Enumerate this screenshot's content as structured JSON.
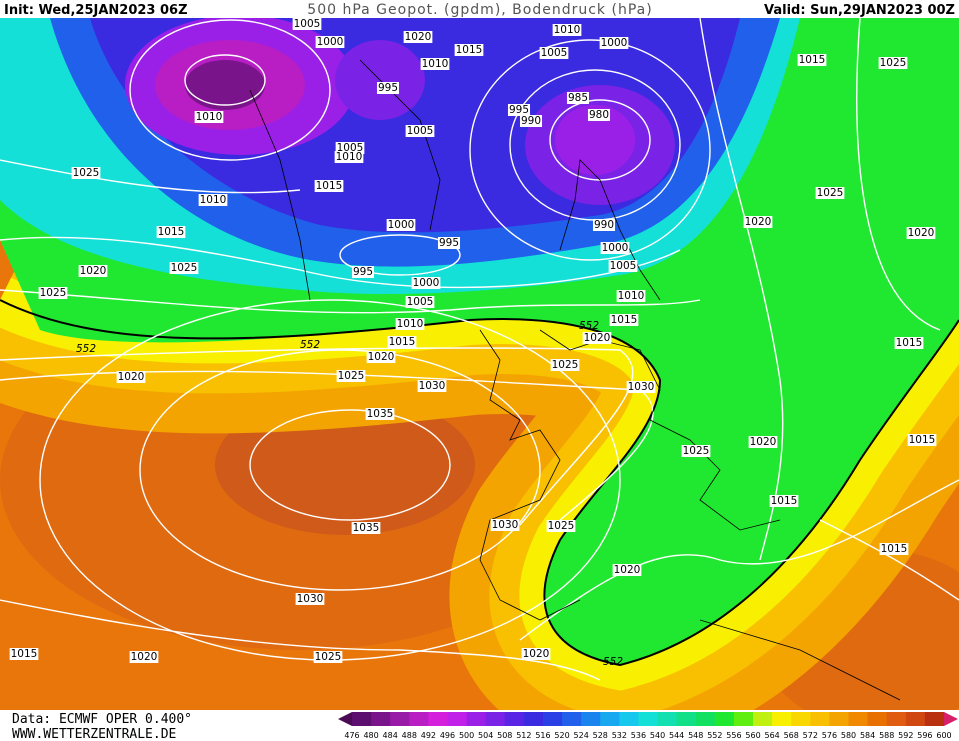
{
  "header": {
    "init": "Init: Wed,25JAN2023 06Z",
    "title": "500 hPa Geopot. (gpdm), Bodendruck (hPa)",
    "valid": "Valid: Sun,29JAN2023 00Z"
  },
  "labels": [
    "1005",
    "1000",
    "1020",
    "1015",
    "1010",
    "1005",
    "1000",
    "1015",
    "1025",
    "1010",
    "995",
    "985",
    "995",
    "990",
    "980",
    "1010",
    "1005",
    "1005",
    "1010",
    "1025",
    "1015",
    "1010",
    "1025",
    "1020",
    "1020",
    "1000",
    "990",
    "1015",
    "995",
    "1000",
    "1020",
    "1025",
    "995",
    "1005",
    "1000",
    "1025",
    "1010",
    "1005",
    "1015",
    "1010",
    "552",
    "1020",
    "1015",
    "552",
    "552",
    "1015",
    "1020",
    "1025",
    "1025",
    "1020",
    "1030",
    "1030",
    "1035",
    "1015",
    "1020",
    "1025",
    "1015",
    "1030",
    "1025",
    "1035",
    "1015",
    "1020",
    "1030",
    "1015",
    "1025",
    "1020",
    "1020",
    "552"
  ],
  "footer": {
    "data": "Data: ECMWF OPER 0.400°",
    "site": "WWW.WETTERZENTRALE.DE"
  },
  "scale": {
    "ticks": [
      476,
      480,
      484,
      488,
      492,
      496,
      500,
      504,
      508,
      512,
      516,
      520,
      524,
      528,
      532,
      536,
      540,
      544,
      548,
      552,
      556,
      560,
      564,
      568,
      572,
      576,
      580,
      584,
      588,
      592,
      596,
      600
    ],
    "colors": [
      "#4b0a55",
      "#5c0f6e",
      "#7a148a",
      "#9a1aa8",
      "#b81ec4",
      "#d41fdc",
      "#c020e8",
      "#9a20e8",
      "#7a22e6",
      "#5a24e4",
      "#3a2ae0",
      "#2a40e6",
      "#2060ea",
      "#1a84ee",
      "#18a8f0",
      "#16c8ee",
      "#14e0d8",
      "#12e0b0",
      "#12e088",
      "#12e060",
      "#20e830",
      "#60ee10",
      "#c0f010",
      "#f8f000",
      "#f8d800",
      "#f8c000",
      "#f4a400",
      "#f08800",
      "#e87000",
      "#e05c10",
      "#d04810",
      "#b83010",
      "#d8206a"
    ]
  }
}
